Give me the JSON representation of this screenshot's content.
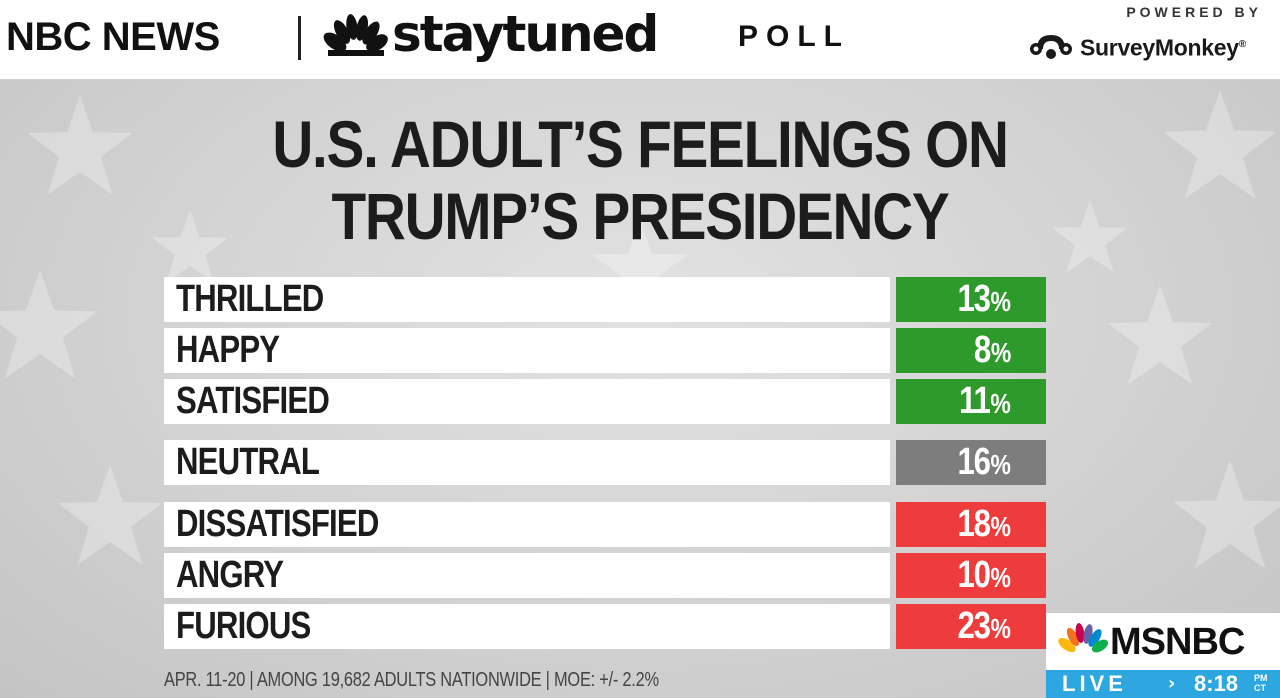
{
  "header": {
    "network": "NBC NEWS",
    "brand": "staytuned",
    "segment": "POLL",
    "powered_by": "POWERED BY",
    "sponsor": "SurveyMonkey",
    "sponsor_mark": "®"
  },
  "title": {
    "line1": "U.S. ADULT’S FEELINGS ON",
    "line2": "TRUMP’S PRESIDENCY"
  },
  "rows": [
    {
      "label": "THRILLED",
      "value": "13",
      "unit": "%",
      "color": "#2f9a2c"
    },
    {
      "label": "HAPPY",
      "value": "8",
      "unit": "%",
      "color": "#2f9a2c"
    },
    {
      "label": "SATISFIED",
      "value": "11",
      "unit": "%",
      "color": "#2f9a2c"
    },
    {
      "label": "NEUTRAL",
      "value": "16",
      "unit": "%",
      "color": "#7d7d7d"
    },
    {
      "label": "DISSATISFIED",
      "value": "18",
      "unit": "%",
      "color": "#ee3b3b"
    },
    {
      "label": "ANGRY",
      "value": "10",
      "unit": "%",
      "color": "#ee3b3b"
    },
    {
      "label": "FURIOUS",
      "value": "23",
      "unit": "%",
      "color": "#ee3b3b"
    }
  ],
  "footnote": "APR. 11-20 | AMONG 19,682 ADULTS NATIONWIDE | MOE: +/- 2.2%",
  "bug": {
    "network": "MSNBC",
    "live": "LIVE",
    "arrow": "›",
    "time": "8:18",
    "ampm": "PM",
    "timezone": "CT"
  },
  "colors": {
    "positive": "#2f9a2c",
    "neutral": "#7d7d7d",
    "negative": "#ee3b3b",
    "live": "#2ea6e0"
  }
}
